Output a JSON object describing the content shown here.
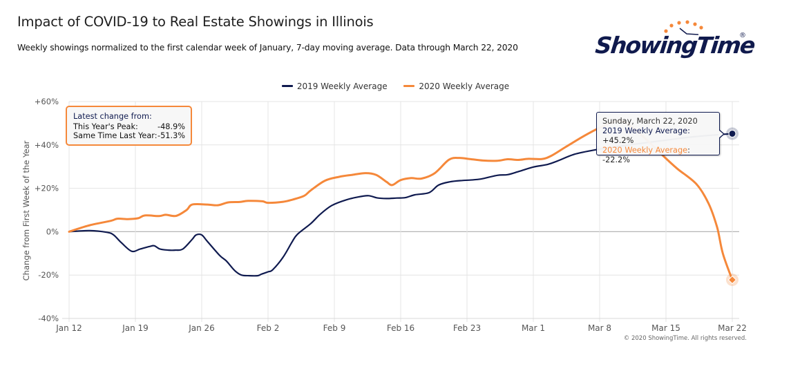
{
  "header": {
    "title": "Impact of COVID-19 to Real Estate Showings in Illinois",
    "subtitle": "Weekly showings normalized to the first calendar week of January, 7-day moving average. Data through March 22, 2020"
  },
  "logo": {
    "text": "ShowingTime",
    "registered": "®",
    "colors": {
      "text": "#101a4d",
      "dots": "#f5883a"
    }
  },
  "info_box": {
    "heading": "Latest change from:",
    "rows": [
      {
        "label": "This Year's Peak:",
        "value": "-48.9%"
      },
      {
        "label": "Same Time Last Year:",
        "value": "-51.3%"
      }
    ]
  },
  "tooltip": {
    "date": "Sunday, March 22, 2020",
    "rows": [
      {
        "series": "2019 Weekly Average",
        "value": "+45.2%"
      },
      {
        "series": "2020 Weekly Average",
        "value": "-22.2%"
      }
    ]
  },
  "copyright": "© 2020 ShowingTime. All rights reserved.",
  "chart_data": {
    "type": "line",
    "title": "Impact of COVID-19 to Real Estate Showings in Illinois",
    "subtitle": "Weekly showings normalized to the first calendar week of January, 7-day moving average. Data through March 22, 2020",
    "xlabel": "",
    "ylabel": "Change from First Week of the Year",
    "x_unit": "days since Jan 12",
    "xlim": [
      0,
      70
    ],
    "ylim": [
      -40,
      60
    ],
    "x_ticks": [
      {
        "day": 0,
        "label": "Jan 12"
      },
      {
        "day": 7,
        "label": "Jan 19"
      },
      {
        "day": 14,
        "label": "Jan 26"
      },
      {
        "day": 21,
        "label": "Feb 2"
      },
      {
        "day": 28,
        "label": "Feb 9"
      },
      {
        "day": 35,
        "label": "Feb 16"
      },
      {
        "day": 42,
        "label": "Feb 23"
      },
      {
        "day": 49,
        "label": "Mar 1"
      },
      {
        "day": 56,
        "label": "Mar 8"
      },
      {
        "day": 63,
        "label": "Mar 15"
      },
      {
        "day": 70,
        "label": "Mar 22"
      }
    ],
    "y_ticks": [
      {
        "value": 60,
        "label": "+60%"
      },
      {
        "value": 40,
        "label": "+40%"
      },
      {
        "value": 20,
        "label": "+20%"
      },
      {
        "value": 0,
        "label": "0%"
      },
      {
        "value": -20,
        "label": "-20%"
      },
      {
        "value": -40,
        "label": "-40%"
      }
    ],
    "grid": true,
    "legend_position": "top-center",
    "series": [
      {
        "name": "2019 Weekly Average",
        "color": "#0f1a4f",
        "marker": "circle",
        "points": [
          [
            0,
            0
          ],
          [
            2.2,
            0.5
          ],
          [
            4,
            -0.3
          ],
          [
            4.7,
            -1.5
          ],
          [
            5.5,
            -5
          ],
          [
            6.6,
            -9
          ],
          [
            7.5,
            -8
          ],
          [
            8.5,
            -6.8
          ],
          [
            9,
            -6.5
          ],
          [
            9.6,
            -8
          ],
          [
            10.5,
            -8.5
          ],
          [
            11.2,
            -8.5
          ],
          [
            12,
            -8
          ],
          [
            13,
            -3.5
          ],
          [
            13.4,
            -1.5
          ],
          [
            14,
            -1.5
          ],
          [
            14.6,
            -4.5
          ],
          [
            15.9,
            -11
          ],
          [
            16.6,
            -13.5
          ],
          [
            17.5,
            -18
          ],
          [
            18.2,
            -20
          ],
          [
            19,
            -20.3
          ],
          [
            19.9,
            -20.3
          ],
          [
            20.3,
            -19.6
          ],
          [
            21,
            -18.5
          ],
          [
            21.5,
            -17.5
          ],
          [
            22.6,
            -11.7
          ],
          [
            23.5,
            -5
          ],
          [
            24.1,
            -1.2
          ],
          [
            25.5,
            3.7
          ],
          [
            26.5,
            8
          ],
          [
            27.7,
            12
          ],
          [
            29.2,
            14.6
          ],
          [
            30.5,
            16
          ],
          [
            31.6,
            16.6
          ],
          [
            32.5,
            15.6
          ],
          [
            33.5,
            15.3
          ],
          [
            34.6,
            15.5
          ],
          [
            35.5,
            15.7
          ],
          [
            36.5,
            17
          ],
          [
            38,
            18
          ],
          [
            39,
            21.5
          ],
          [
            40.2,
            23
          ],
          [
            41.5,
            23.6
          ],
          [
            42.3,
            23.8
          ],
          [
            43.5,
            24.3
          ],
          [
            45.2,
            26
          ],
          [
            46.3,
            26.3
          ],
          [
            47.5,
            27.8
          ],
          [
            49,
            29.8
          ],
          [
            50.5,
            31
          ],
          [
            51.5,
            32.5
          ],
          [
            53.2,
            35.5
          ],
          [
            55,
            37.3
          ],
          [
            56.5,
            38.4
          ],
          [
            60,
            40.5
          ],
          [
            63,
            42.2
          ],
          [
            66,
            43.8
          ],
          [
            70,
            45.2
          ]
        ]
      },
      {
        "name": "2020 Weekly Average",
        "color": "#f5883a",
        "marker": "diamond",
        "points": [
          [
            0,
            0
          ],
          [
            2.2,
            3
          ],
          [
            4.4,
            5
          ],
          [
            5.1,
            6
          ],
          [
            6.2,
            5.8
          ],
          [
            7.3,
            6.2
          ],
          [
            8,
            7.5
          ],
          [
            9.5,
            7.2
          ],
          [
            10.2,
            7.8
          ],
          [
            11.3,
            7.3
          ],
          [
            12.4,
            10
          ],
          [
            13,
            12.5
          ],
          [
            14.6,
            12.5
          ],
          [
            15.7,
            12.2
          ],
          [
            16.8,
            13.5
          ],
          [
            18,
            13.7
          ],
          [
            18.9,
            14.2
          ],
          [
            20.4,
            14
          ],
          [
            21,
            13.3
          ],
          [
            22.6,
            13.8
          ],
          [
            23.6,
            14.8
          ],
          [
            24.8,
            16.5
          ],
          [
            25.5,
            19
          ],
          [
            27,
            23.5
          ],
          [
            28.5,
            25.3
          ],
          [
            29.9,
            26.2
          ],
          [
            31.3,
            27
          ],
          [
            32.4,
            26.2
          ],
          [
            33.5,
            23
          ],
          [
            34.1,
            21.5
          ],
          [
            35,
            23.8
          ],
          [
            36.1,
            24.7
          ],
          [
            37.2,
            24.5
          ],
          [
            38.6,
            27
          ],
          [
            40.1,
            33.2
          ],
          [
            41.2,
            34
          ],
          [
            42.3,
            33.5
          ],
          [
            43.7,
            32.8
          ],
          [
            45.2,
            32.7
          ],
          [
            46.3,
            33.4
          ],
          [
            47.4,
            33.1
          ],
          [
            48.5,
            33.6
          ],
          [
            49.9,
            33.5
          ],
          [
            50.9,
            35
          ],
          [
            52.4,
            39
          ],
          [
            54.1,
            43.5
          ],
          [
            55.7,
            47.3
          ],
          [
            57.1,
            50
          ],
          [
            58.3,
            51
          ],
          [
            59.5,
            48
          ],
          [
            61.3,
            41
          ],
          [
            62.7,
            35
          ],
          [
            64.2,
            29
          ],
          [
            66.2,
            22
          ],
          [
            67.5,
            13
          ],
          [
            68.4,
            2
          ],
          [
            69,
            -10
          ],
          [
            70,
            -22.2
          ]
        ]
      }
    ],
    "highlighted_point": {
      "day": 70,
      "date": "Sunday, March 22, 2020",
      "values": {
        "2019 Weekly Average": 45.2,
        "2020 Weekly Average": -22.2
      }
    },
    "annotations": [
      {
        "text": "Latest change from: This Year's Peak: -48.9%; Same Time Last Year: -51.3%"
      }
    ]
  }
}
